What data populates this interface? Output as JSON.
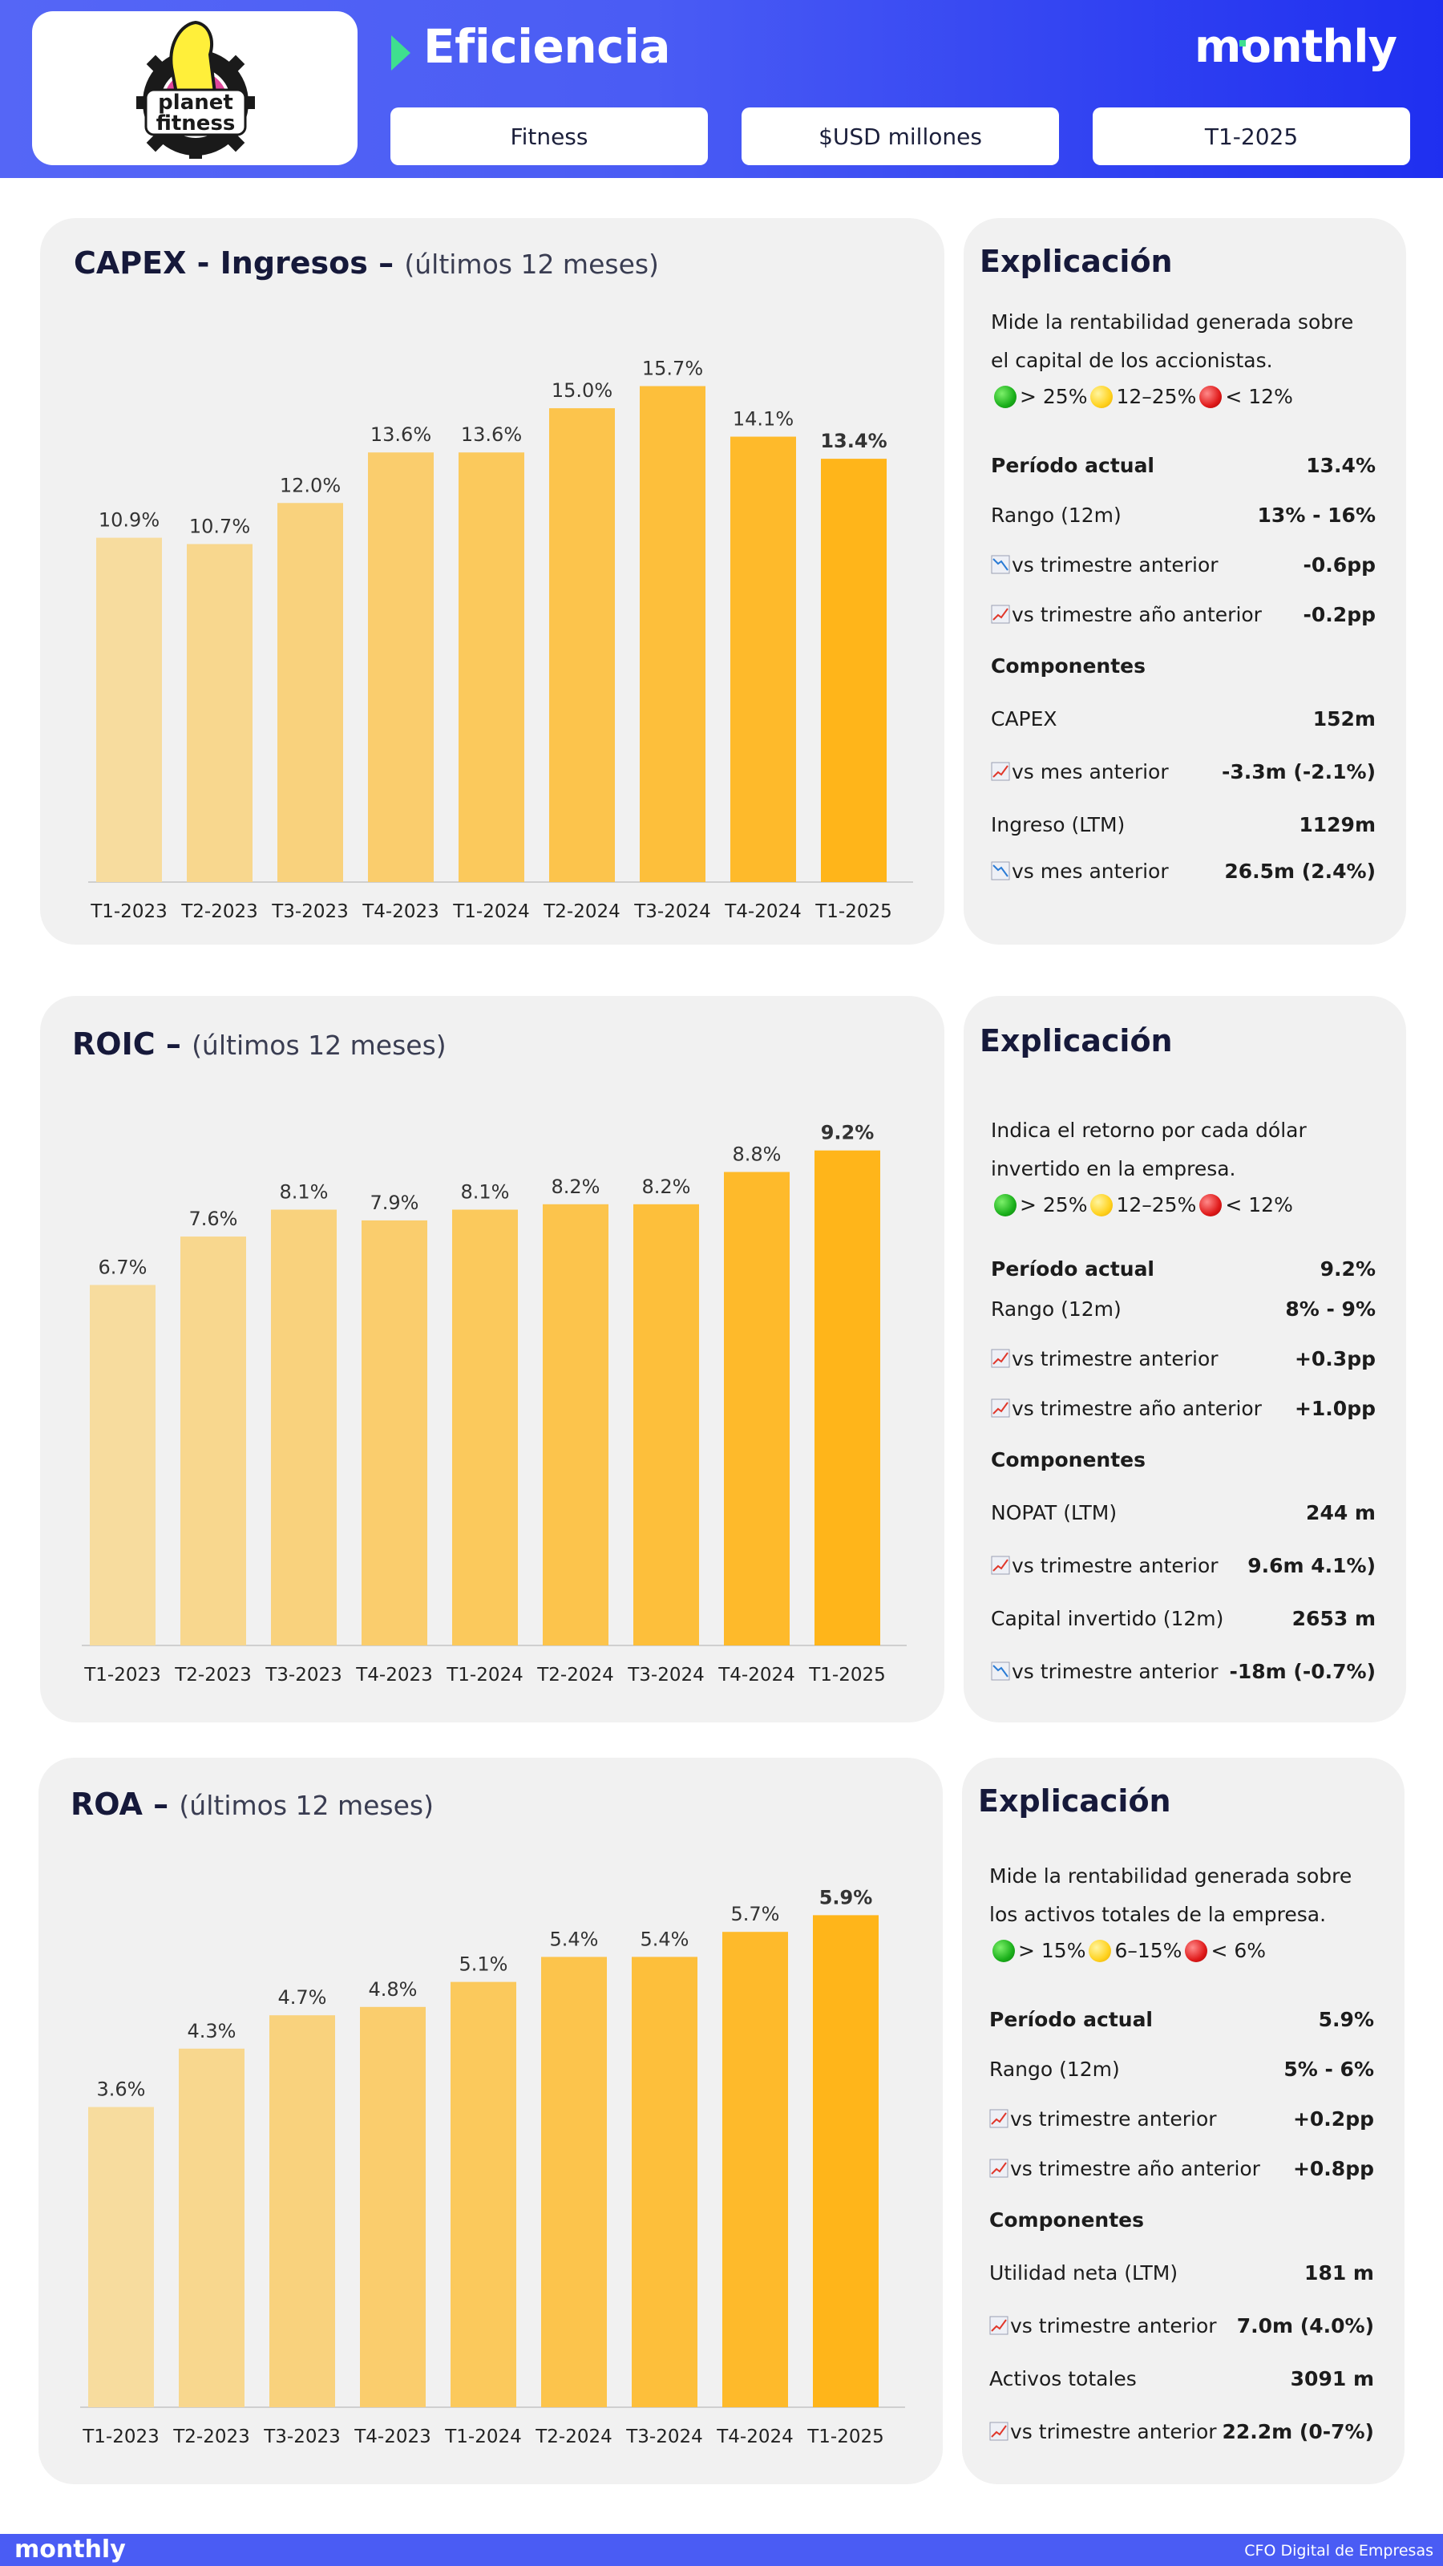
{
  "header": {
    "title": "Eficiencia",
    "brand": "monthly",
    "logo_text": [
      "planet",
      "fitness"
    ],
    "pills": [
      "Fitness",
      "$USD millones",
      "T1-2025"
    ]
  },
  "colors": {
    "accent": "#3fdf8f",
    "bar_light": "#f7dc9e",
    "bar_dark": "#ffb51a",
    "positive": "#e0372b",
    "negative": "#2a7bd5"
  },
  "sections": [
    {
      "title": "CAPEX - Ingresos –",
      "subtitle": "(últimos 12 meses)",
      "exp_title": "Explicación",
      "desc": "Mide la rentabilidad generada sobre el capital de los accionistas.",
      "legend": [
        "> 25%",
        "12–25%",
        "< 12%"
      ],
      "rows": [
        {
          "label": "Período actual",
          "value": "13.4%",
          "icon": "",
          "bold": true
        },
        {
          "label": "Rango (12m)",
          "value": "13% - 16%",
          "icon": "",
          "bold": false
        },
        {
          "label": "vs trimestre anterior",
          "value": "-0.6pp",
          "icon": "down-chart-icon",
          "bold": false
        },
        {
          "label": "vs trimestre año anterior",
          "value": "-0.2pp",
          "icon": "up-chart-icon",
          "bold": false
        },
        {
          "label": "Componentes",
          "value": "",
          "icon": "",
          "bold": true
        },
        {
          "label": "CAPEX",
          "value": "152m",
          "icon": "",
          "bold": false
        },
        {
          "label": "vs mes anterior",
          "value": "-3.3m (-2.1%)",
          "icon": "up-chart-icon",
          "bold": false
        },
        {
          "label": "Ingreso (LTM)",
          "value": "1129m",
          "icon": "",
          "bold": false
        },
        {
          "label": "vs mes anterior",
          "value": "26.5m (2.4%)",
          "icon": "down-chart-icon",
          "bold": false
        }
      ]
    },
    {
      "title": "ROIC –",
      "subtitle": "(últimos 12 meses)",
      "exp_title": "Explicación",
      "desc": "Indica el retorno por cada dólar invertido en la empresa.",
      "legend": [
        "> 25%",
        "12–25%",
        "< 12%"
      ],
      "rows": [
        {
          "label": "Período actual",
          "value": "9.2%",
          "icon": "",
          "bold": true
        },
        {
          "label": "Rango (12m)",
          "value": "8% - 9%",
          "icon": "",
          "bold": false
        },
        {
          "label": "vs trimestre anterior",
          "value": "+0.3pp",
          "icon": "up-chart-icon",
          "bold": false
        },
        {
          "label": "vs trimestre año anterior",
          "value": "+1.0pp",
          "icon": "up-chart-icon",
          "bold": false
        },
        {
          "label": "Componentes",
          "value": "",
          "icon": "",
          "bold": true
        },
        {
          "label": "NOPAT (LTM)",
          "value": "244 m",
          "icon": "",
          "bold": false
        },
        {
          "label": "vs trimestre anterior",
          "value": "9.6m 4.1%)",
          "icon": "up-chart-icon",
          "bold": false
        },
        {
          "label": "Capital invertido (12m)",
          "value": "2653 m",
          "icon": "",
          "bold": false
        },
        {
          "label": "vs trimestre anterior",
          "value": "-18m (-0.7%)",
          "icon": "down-chart-icon",
          "bold": false
        }
      ]
    },
    {
      "title": "ROA –",
      "subtitle": "(últimos 12 meses)",
      "exp_title": "Explicación",
      "desc": "Mide la rentabilidad generada sobre los activos totales de la empresa.",
      "legend": [
        "> 15%",
        "6–15%",
        "< 6%"
      ],
      "rows": [
        {
          "label": "Período actual",
          "value": "5.9%",
          "icon": "",
          "bold": true
        },
        {
          "label": "Rango (12m)",
          "value": "5% - 6%",
          "icon": "",
          "bold": false
        },
        {
          "label": "vs trimestre anterior",
          "value": "+0.2pp",
          "icon": "up-chart-icon",
          "bold": false
        },
        {
          "label": "vs trimestre año anterior",
          "value": "+0.8pp",
          "icon": "up-chart-icon",
          "bold": false
        },
        {
          "label": "Componentes",
          "value": "",
          "icon": "",
          "bold": true
        },
        {
          "label": "Utilidad neta (LTM)",
          "value": "181 m",
          "icon": "",
          "bold": false
        },
        {
          "label": "vs trimestre anterior",
          "value": "7.0m (4.0%)",
          "icon": "up-chart-icon",
          "bold": false
        },
        {
          "label": "Activos totales",
          "value": "3091 m",
          "icon": "",
          "bold": false
        },
        {
          "label": "vs trimestre anterior",
          "value": "22.2m (0-7%)",
          "icon": "up-chart-icon",
          "bold": false
        }
      ]
    }
  ],
  "chart_data": [
    {
      "type": "bar",
      "title": "CAPEX - Ingresos – (últimos 12 meses)",
      "categories": [
        "T1-2023",
        "T2-2023",
        "T3-2023",
        "T4-2023",
        "T1-2024",
        "T2-2024",
        "T3-2024",
        "T4-2024",
        "T1-2025"
      ],
      "values": [
        10.9,
        10.7,
        12.0,
        13.6,
        13.6,
        15.0,
        15.7,
        14.1,
        13.4
      ],
      "labels": [
        "10.9%",
        "10.7%",
        "12.0%",
        "13.6%",
        "13.6%",
        "15.0%",
        "15.7%",
        "14.1%",
        "13.4%"
      ],
      "ylim": [
        0,
        16.5
      ]
    },
    {
      "type": "bar",
      "title": "ROIC – (últimos 12 meses)",
      "categories": [
        "T1-2023",
        "T2-2023",
        "T3-2023",
        "T4-2023",
        "T1-2024",
        "T2-2024",
        "T3-2024",
        "T4-2024",
        "T1-2025"
      ],
      "values": [
        6.7,
        7.6,
        8.1,
        7.9,
        8.1,
        8.2,
        8.2,
        8.8,
        9.2
      ],
      "labels": [
        "6.7%",
        "7.6%",
        "8.1%",
        "7.9%",
        "8.1%",
        "8.2%",
        "8.2%",
        "8.8%",
        "9.2%"
      ],
      "ylim": [
        0,
        9.3
      ]
    },
    {
      "type": "bar",
      "title": "ROA – (últimos 12 meses)",
      "categories": [
        "T1-2023",
        "T2-2023",
        "T3-2023",
        "T4-2023",
        "T1-2024",
        "T2-2024",
        "T3-2024",
        "T4-2024",
        "T1-2025"
      ],
      "values": [
        3.6,
        4.3,
        4.7,
        4.8,
        5.1,
        5.4,
        5.4,
        5.7,
        5.9
      ],
      "labels": [
        "3.6%",
        "4.3%",
        "4.7%",
        "4.8%",
        "5.1%",
        "5.4%",
        "5.4%",
        "5.7%",
        "5.9%"
      ],
      "ylim": [
        0,
        6.0
      ]
    }
  ],
  "footer": {
    "brand": "monthly",
    "tagline": "CFO Digital de Empresas"
  }
}
